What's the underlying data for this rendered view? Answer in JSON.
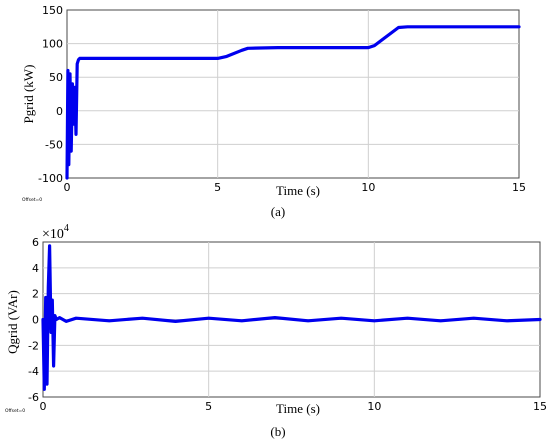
{
  "chart_data": [
    {
      "type": "line",
      "panel_label": "(a)",
      "ylabel": "Pgrid (kW)",
      "xlabel": "Time (s)",
      "offset_note": "Offset=0",
      "xlim": [
        0,
        15
      ],
      "ylim": [
        -100,
        150
      ],
      "xticks": [
        0,
        5,
        10,
        15
      ],
      "yticks": [
        -100,
        -50,
        0,
        50,
        100,
        150
      ],
      "grid": true,
      "color": "#0000ee",
      "series": [
        {
          "x": [
            0,
            0.03,
            0.06,
            0.1,
            0.14,
            0.18,
            0.22,
            0.26,
            0.3,
            0.34,
            0.38,
            0.42,
            0.5,
            1,
            2,
            3,
            4,
            4.5,
            5,
            5.3,
            5.8,
            6,
            7,
            8,
            9,
            10,
            10.2,
            11,
            11.3,
            12,
            13,
            14,
            15
          ],
          "y": [
            -100,
            60,
            -80,
            55,
            -60,
            40,
            -20,
            35,
            -35,
            70,
            76,
            78,
            78,
            78,
            78,
            78,
            78,
            78,
            78,
            81,
            90,
            93,
            94,
            94,
            94,
            94,
            97,
            124,
            125,
            125,
            125,
            125,
            125
          ]
        }
      ]
    },
    {
      "type": "line",
      "panel_label": "(b)",
      "ylabel": "Qgrid (VAr)",
      "xlabel": "Time (s)",
      "offset_note": "Offset=0",
      "multiplier": "×10",
      "multiplier_exp": "4",
      "xlim": [
        0,
        15
      ],
      "ylim": [
        -6,
        6
      ],
      "xticks": [
        0,
        5,
        10,
        15
      ],
      "yticks": [
        -6,
        -4,
        -2,
        0,
        2,
        4,
        6
      ],
      "yticklabels": [
        "-6",
        "-4",
        "-2",
        "0",
        "2",
        "4",
        "6"
      ],
      "grid": true,
      "color": "#0000ee",
      "series": [
        {
          "x": [
            0,
            0.04,
            0.08,
            0.12,
            0.16,
            0.2,
            0.24,
            0.28,
            0.32,
            0.36,
            0.4,
            0.5,
            0.7,
            1,
            2,
            3,
            4,
            5,
            6,
            7,
            8,
            9,
            10,
            11,
            12,
            13,
            14,
            15
          ],
          "y": [
            0,
            -5.4,
            1.7,
            -5,
            2.5,
            5.7,
            -1,
            1.5,
            -3.6,
            0.3,
            0,
            0.15,
            -0.15,
            0.1,
            -0.1,
            0.1,
            -0.15,
            0.1,
            -0.1,
            0.15,
            -0.1,
            0.1,
            -0.1,
            0.1,
            -0.1,
            0.1,
            -0.1,
            0
          ]
        }
      ]
    }
  ]
}
